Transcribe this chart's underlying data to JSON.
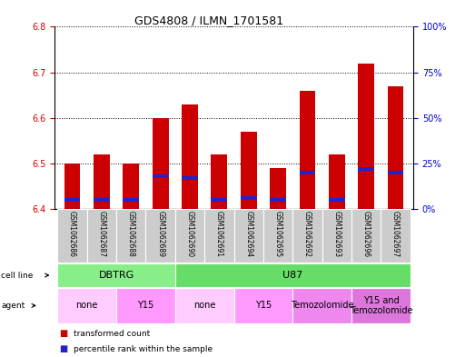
{
  "title": "GDS4808 / ILMN_1701581",
  "samples": [
    "GSM1062686",
    "GSM1062687",
    "GSM1062688",
    "GSM1062689",
    "GSM1062690",
    "GSM1062691",
    "GSM1062694",
    "GSM1062695",
    "GSM1062692",
    "GSM1062693",
    "GSM1062696",
    "GSM1062697"
  ],
  "transformed_counts": [
    6.5,
    6.52,
    6.5,
    6.6,
    6.63,
    6.52,
    6.57,
    6.49,
    6.66,
    6.52,
    6.72,
    6.67
  ],
  "percentile_ranks": [
    5,
    5,
    5,
    18,
    17,
    5,
    6,
    5,
    20,
    5,
    22,
    20
  ],
  "baseline": 6.4,
  "ylim_left": [
    6.4,
    6.8
  ],
  "ylim_right": [
    0,
    100
  ],
  "yticks_left": [
    6.4,
    6.5,
    6.6,
    6.7,
    6.8
  ],
  "yticks_right": [
    0,
    25,
    50,
    75,
    100
  ],
  "bar_color": "#cc0000",
  "percentile_color": "#2222cc",
  "cell_line_groups": [
    {
      "label": "DBTRG",
      "start": 0,
      "end": 3,
      "color": "#88ee88"
    },
    {
      "label": "U87",
      "start": 4,
      "end": 11,
      "color": "#66dd66"
    }
  ],
  "agent_groups": [
    {
      "label": "none",
      "start": 0,
      "end": 1,
      "color": "#ffccff"
    },
    {
      "label": "Y15",
      "start": 2,
      "end": 3,
      "color": "#ff99ff"
    },
    {
      "label": "none",
      "start": 4,
      "end": 5,
      "color": "#ffccff"
    },
    {
      "label": "Y15",
      "start": 6,
      "end": 7,
      "color": "#ff99ff"
    },
    {
      "label": "Temozolomide",
      "start": 8,
      "end": 9,
      "color": "#ee88ee"
    },
    {
      "label": "Y15 and\nTemozolomide",
      "start": 10,
      "end": 11,
      "color": "#dd77dd"
    }
  ],
  "background_color": "#ffffff",
  "plot_bg_color": "#ffffff",
  "grid_color": "#000000",
  "tick_label_color_left": "#cc0000",
  "tick_label_color_right": "#0000cc",
  "sample_bg_color": "#cccccc",
  "bar_width": 0.55
}
